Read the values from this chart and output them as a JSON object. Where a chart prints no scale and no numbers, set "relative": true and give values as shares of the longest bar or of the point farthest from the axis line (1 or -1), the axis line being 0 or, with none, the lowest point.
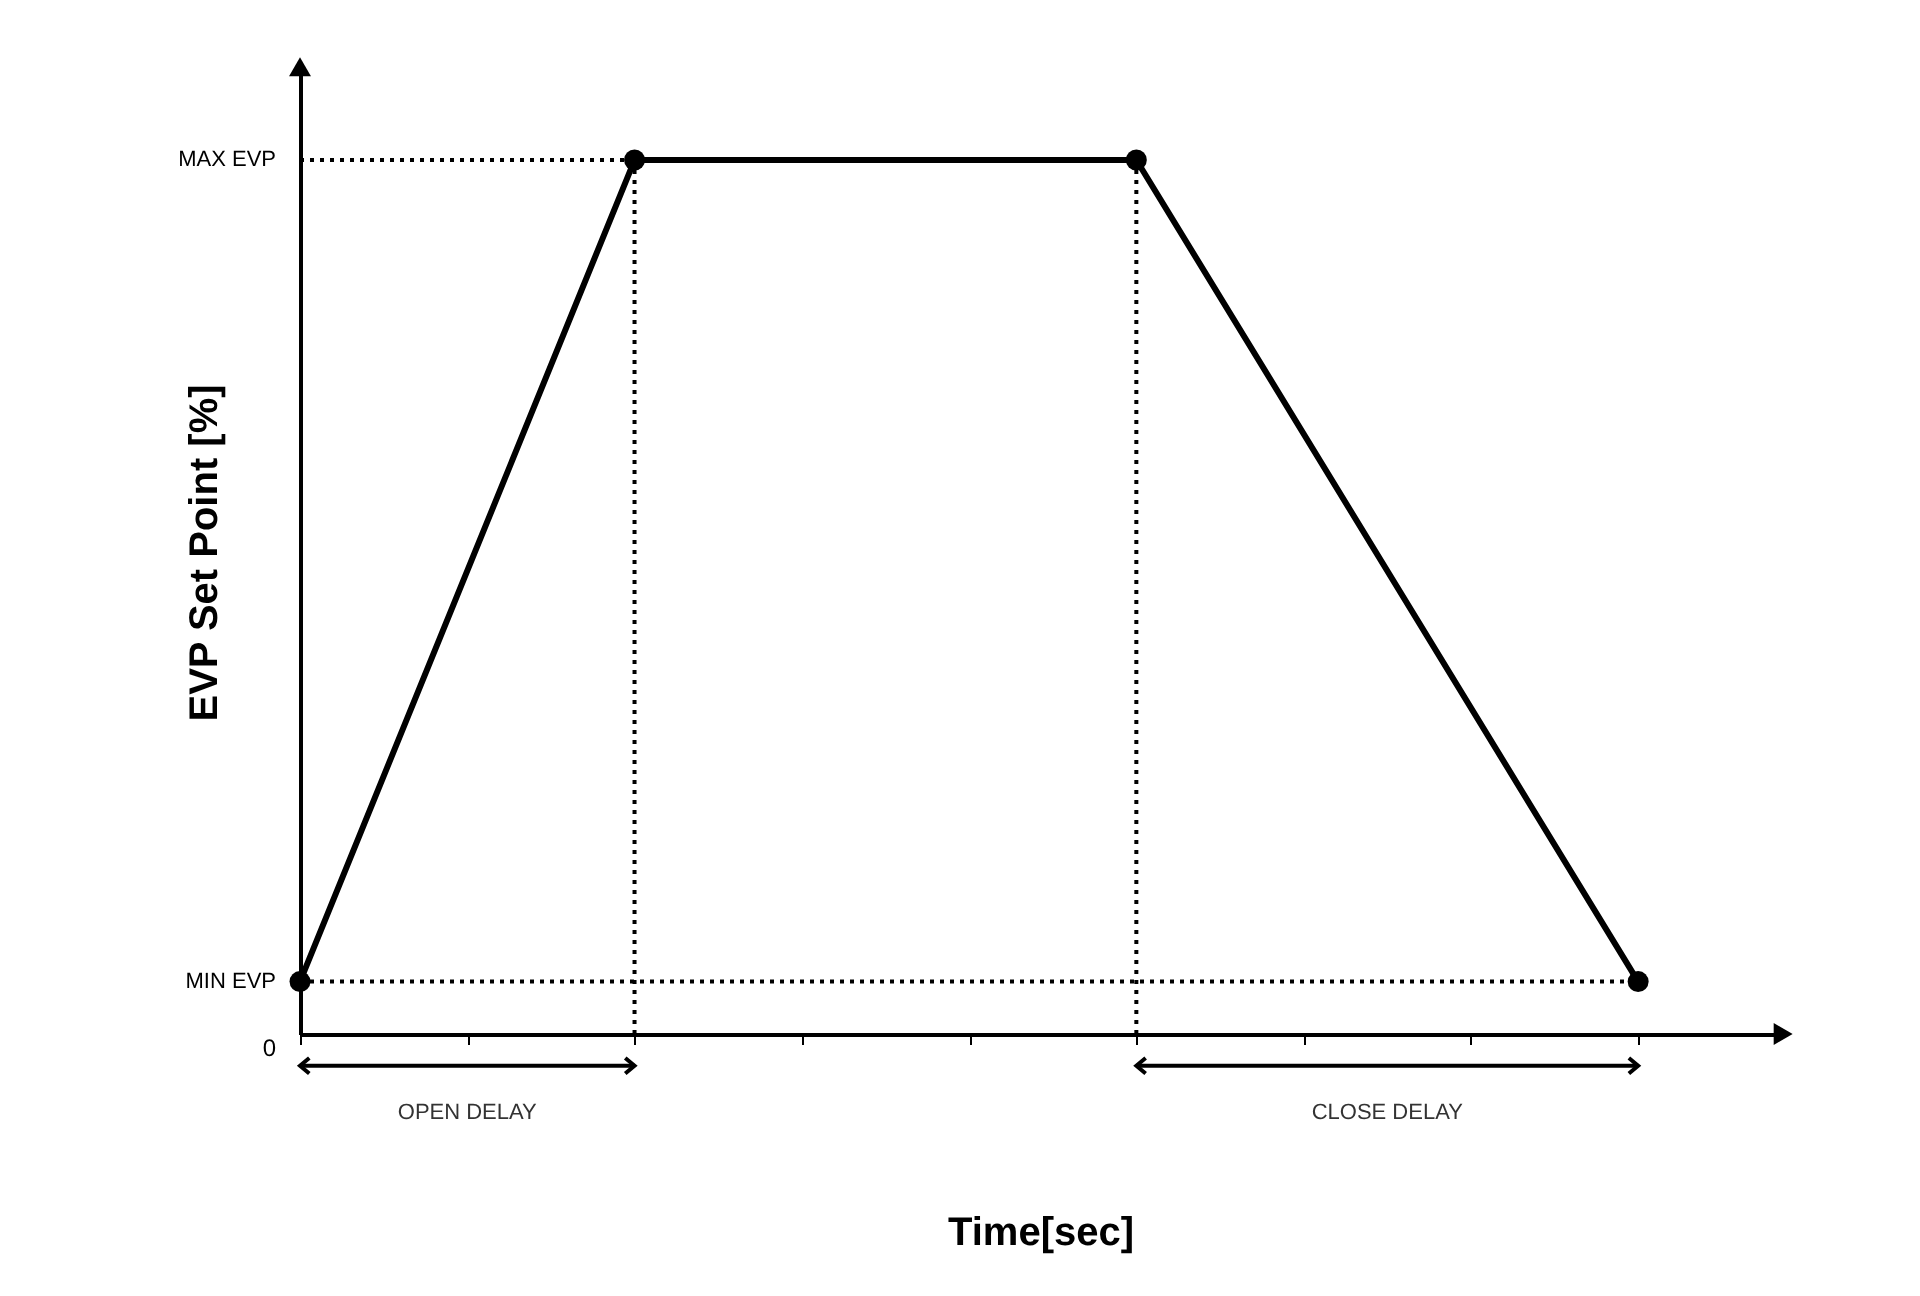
{
  "chart_data": {
    "type": "line",
    "relative": true,
    "xlabel": "Time[sec]",
    "ylabel": "EVP Set Point [%]",
    "categories": [
      null,
      null,
      null,
      null,
      null,
      null,
      null,
      null,
      null
    ],
    "series": [
      {
        "color": "#000000",
        "values": [
          0.06,
          null,
          1,
          null,
          null,
          1,
          null,
          null,
          0.06
        ]
      }
    ],
    "marker": "circle",
    "line_style": "solid",
    "ref_lines": [
      {
        "axis": "y",
        "value": 1,
        "label": "MAX EVP",
        "line_style": "dotted",
        "color": "#000000"
      },
      {
        "axis": "y",
        "value": 0.06,
        "label": "MIN EVP",
        "line_style": "dotted",
        "color": "#000000"
      }
    ],
    "annotations": [
      "0",
      "OPEN DELAY",
      "CLOSE DELAY"
    ]
  }
}
